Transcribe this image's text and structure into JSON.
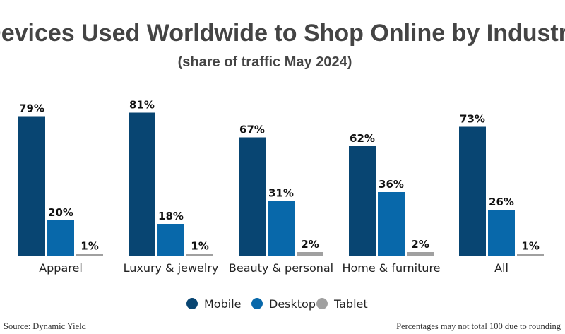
{
  "chart_data": {
    "type": "bar",
    "title": "Devices Used Worldwide to Shop Online by Industry",
    "subtitle": "(share of traffic May 2024)",
    "categories": [
      "Apparel",
      "Luxury & jewelry",
      "Beauty & personal",
      "Home & furniture",
      "All"
    ],
    "series": [
      {
        "name": "Mobile",
        "color": "#084572",
        "values": [
          79,
          81,
          67,
          62,
          73
        ]
      },
      {
        "name": "Desktop",
        "color": "#0868AA",
        "values": [
          20,
          18,
          31,
          36,
          26
        ]
      },
      {
        "name": "Tablet",
        "color": "#A0A0A0",
        "values": [
          1,
          1,
          2,
          2,
          1
        ]
      }
    ],
    "value_suffix": "%",
    "ylim": [
      0,
      100
    ],
    "grid": false,
    "legend_position": "bottom-center"
  },
  "footer": {
    "source": "Source: Dynamic Yield",
    "note": "Percentages may not total 100 due to rounding"
  }
}
